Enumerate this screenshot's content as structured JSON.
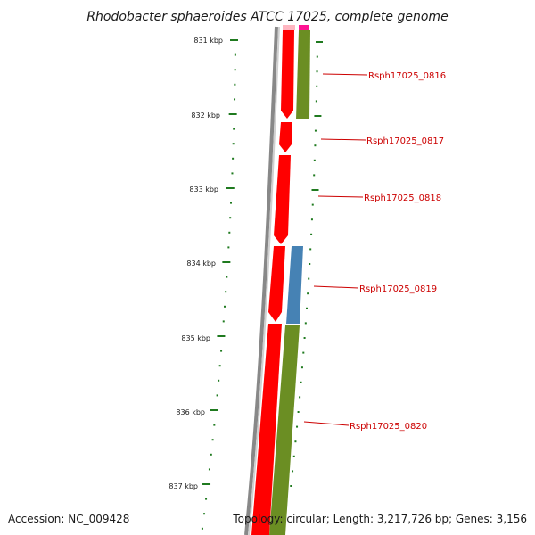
{
  "title": "Rhodobacter sphaeroides ATCC 17025, complete genome",
  "footer": {
    "accession": "Accession: NC_009428",
    "topology": "Topology: circular; Length: 3,217,726 bp; Genes: 3,156"
  },
  "scale": {
    "labels": [
      "831 kbp",
      "832 kbp",
      "833 kbp",
      "834 kbp",
      "835 kbp",
      "836 kbp",
      "837 kbp"
    ],
    "tick_color": "#1f7a1f"
  },
  "genes": [
    {
      "label": "Rsph17025_0816"
    },
    {
      "label": "Rsph17025_0817"
    },
    {
      "label": "Rsph17025_0818"
    },
    {
      "label": "Rsph17025_0819"
    },
    {
      "label": "Rsph17025_0820"
    }
  ],
  "colors": {
    "gene_red": "#ff0000",
    "cog_olive": "#6b8e23",
    "cog_blue": "#4682b4",
    "cog_pink": "#ff1493",
    "backbone_gray": "#888888",
    "label_red": "#cc0000"
  }
}
